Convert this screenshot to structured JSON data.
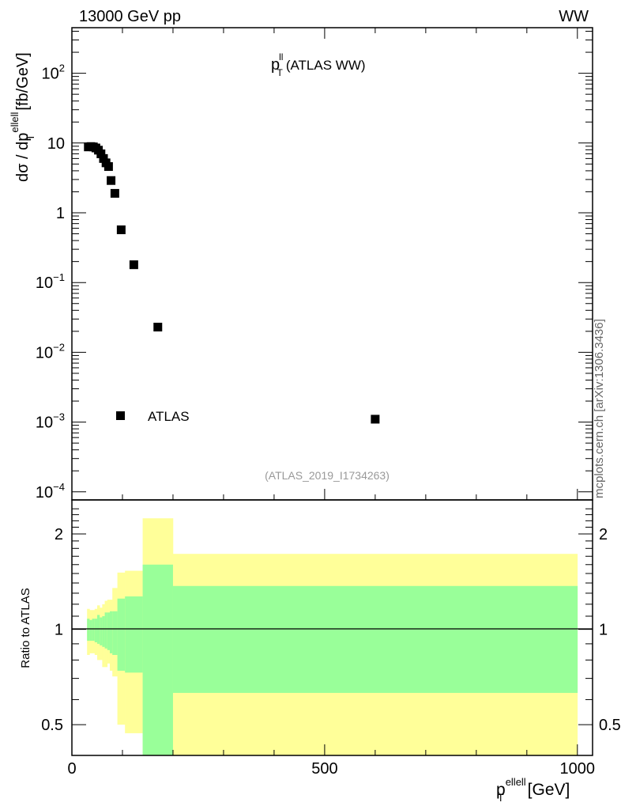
{
  "header": {
    "left": "13000 GeV pp",
    "right": "WW"
  },
  "watermark": "mcplots.cern.ch [arXiv:1306.3436]",
  "colors": {
    "stat_band": "#99ff99",
    "total_band": "#ffff99",
    "marker": "#000000",
    "analysis_label": "#999999"
  },
  "chart_data": [
    {
      "type": "scatter",
      "title": "(ATLAS WW)",
      "title_var": "p",
      "title_sub": "T",
      "title_sup": "ll",
      "analysis": "(ATLAS_2019_I1734263)",
      "ylabel_main": "dσ / dp",
      "ylabel_sub": "T",
      "ylabel_sup": "ellell",
      "ylabel_unit": "[fb/GeV]",
      "xlim": [
        0,
        1030
      ],
      "ylim": [
        7.66e-05,
        450
      ],
      "yscale": "log",
      "ytick_labels": [
        {
          "v": 100,
          "base": "10",
          "exp": "2"
        },
        {
          "v": 10,
          "base": "10",
          "exp": ""
        },
        {
          "v": 1,
          "base": "1",
          "exp": ""
        },
        {
          "v": 0.1,
          "base": "10",
          "exp": "−1"
        },
        {
          "v": 0.01,
          "base": "10",
          "exp": "−2"
        },
        {
          "v": 0.001,
          "base": "10",
          "exp": "−3"
        },
        {
          "v": 0.0001,
          "base": "10",
          "exp": "−4"
        }
      ],
      "legend": {
        "label": "ATLAS",
        "position": "bottom-left"
      },
      "bin_edges": [
        30,
        35,
        40,
        45,
        50,
        55,
        60,
        65,
        70,
        75,
        80,
        90,
        105,
        140,
        200,
        1000
      ],
      "series": [
        {
          "name": "ATLAS",
          "values": [
            8.8,
            8.9,
            8.8,
            8.5,
            7.9,
            7.0,
            6.0,
            5.2,
            4.6,
            2.9,
            1.9,
            0.57,
            0.18,
            0.023,
            0.0011
          ]
        }
      ]
    },
    {
      "type": "area",
      "ylabel": "Ratio to ATLAS",
      "xlabel_main": "p",
      "xlabel_sub": "T",
      "xlabel_sup": "ellell",
      "xlabel_unit": "[GeV]",
      "xlim": [
        0,
        1030
      ],
      "ylim": [
        0.4,
        2.56
      ],
      "yscale": "log",
      "xtick_labels": [
        "0",
        "500",
        "1000"
      ],
      "xticks": [
        0,
        500,
        1000
      ],
      "ytick_labels": [
        "2",
        "1",
        "0.5"
      ],
      "yticks": [
        2,
        1,
        0.5
      ],
      "bin_edges": [
        30,
        35,
        40,
        45,
        50,
        55,
        60,
        65,
        70,
        75,
        80,
        90,
        105,
        140,
        200,
        1000
      ],
      "stat_up": [
        1.08,
        1.07,
        1.08,
        1.08,
        1.11,
        1.09,
        1.1,
        1.13,
        1.13,
        1.14,
        1.14,
        1.25,
        1.27,
        1.6,
        1.37
      ],
      "stat_down": [
        0.92,
        0.92,
        0.92,
        0.91,
        0.9,
        0.89,
        0.88,
        0.87,
        0.86,
        0.84,
        0.83,
        0.74,
        0.73,
        0.3,
        0.63
      ],
      "total_up": [
        1.16,
        1.15,
        1.15,
        1.16,
        1.19,
        1.17,
        1.2,
        1.23,
        1.24,
        1.24,
        1.35,
        1.51,
        1.53,
        2.24,
        1.73
      ],
      "total_down": [
        0.83,
        0.84,
        0.84,
        0.83,
        0.8,
        0.8,
        0.76,
        0.76,
        0.78,
        0.74,
        0.71,
        0.5,
        0.47,
        0.3,
        0.3
      ]
    }
  ]
}
